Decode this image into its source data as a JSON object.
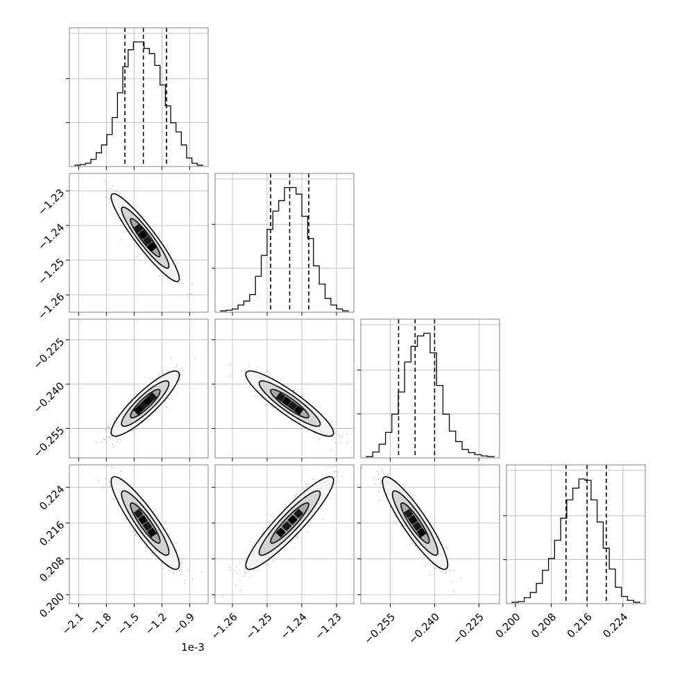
{
  "chart_data": {
    "type": "corner",
    "parameters": 4,
    "axis_x_offset_text": "1e-3",
    "grid": true,
    "colors": {
      "ink": "#000000",
      "grid": "#b0b0b0",
      "frame": "#808080"
    },
    "quantile_lines": "dashed",
    "params": [
      {
        "range": [
          -2.2,
          -0.7
        ],
        "ticks": [
          -2.1,
          -1.8,
          -1.5,
          -1.2,
          -0.9
        ],
        "tick_labels": [
          "−2.1",
          "−1.8",
          "−1.5",
          "−1.2",
          "−0.9"
        ],
        "quantiles": [
          -1.6,
          -1.4,
          -1.15
        ],
        "histogram": [
          0.005,
          0.01,
          0.02,
          0.05,
          0.1,
          0.16,
          0.24,
          0.37,
          0.56,
          0.76,
          0.89,
          0.95,
          0.95,
          0.9,
          0.86,
          0.77,
          0.62,
          0.46,
          0.33,
          0.26,
          0.16,
          0.06,
          0.02,
          0.005
        ]
      },
      {
        "range": [
          -1.265,
          -1.225
        ],
        "ticks": [
          -1.26,
          -1.25,
          -1.24,
          -1.23
        ],
        "tick_labels": [
          "−1.26",
          "−1.25",
          "−1.24",
          "−1.23"
        ],
        "quantiles": [
          -1.249,
          -1.2435,
          -1.238
        ],
        "histogram": [
          0.005,
          0.01,
          0.02,
          0.05,
          0.08,
          0.13,
          0.27,
          0.43,
          0.63,
          0.77,
          0.85,
          0.95,
          0.95,
          0.9,
          0.73,
          0.56,
          0.35,
          0.21,
          0.1,
          0.05,
          0.02,
          0.005
        ]
      },
      {
        "range": [
          -0.265,
          -0.218
        ],
        "ticks": [
          -0.255,
          -0.24,
          -0.225
        ],
        "tick_labels": [
          "−0.255",
          "−0.240",
          "−0.225"
        ],
        "quantiles": [
          -0.2522,
          -0.2466,
          -0.24
        ],
        "histogram": [
          0.005,
          0.04,
          0.1,
          0.19,
          0.33,
          0.5,
          0.73,
          0.85,
          0.93,
          0.95,
          0.8,
          0.55,
          0.33,
          0.2,
          0.12,
          0.06,
          0.035,
          0.02,
          0.01,
          0.005
        ]
      },
      {
        "range": [
          0.198,
          0.229
        ],
        "ticks": [
          0.2,
          0.208,
          0.216,
          0.224
        ],
        "tick_labels": [
          "0.200",
          "0.208",
          "0.216",
          "0.224"
        ],
        "quantiles": [
          0.2113,
          0.216,
          0.2203
        ],
        "histogram": [
          0.005,
          0.01,
          0.04,
          0.08,
          0.15,
          0.25,
          0.34,
          0.48,
          0.65,
          0.79,
          0.88,
          0.95,
          0.94,
          0.79,
          0.62,
          0.42,
          0.26,
          0.12,
          0.05,
          0.02,
          0.005
        ]
      }
    ],
    "pairs": [
      {
        "row": 1,
        "col": 0,
        "mean": [
          -1.38,
          -1.2435
        ],
        "sd": [
          0.16,
          0.0055
        ],
        "corr": -0.93
      },
      {
        "row": 2,
        "col": 0,
        "mean": [
          -1.38,
          -0.2466
        ],
        "sd": [
          0.16,
          0.0048
        ],
        "corr": 0.88
      },
      {
        "row": 2,
        "col": 1,
        "mean": [
          -1.2435,
          -0.2466
        ],
        "sd": [
          0.0055,
          0.0048
        ],
        "corr": -0.9
      },
      {
        "row": 3,
        "col": 0,
        "mean": [
          -1.38,
          0.216
        ],
        "sd": [
          0.16,
          0.0045
        ],
        "corr": -0.9
      },
      {
        "row": 3,
        "col": 1,
        "mean": [
          -1.2435,
          0.216
        ],
        "sd": [
          0.0055,
          0.0045
        ],
        "corr": 0.92
      },
      {
        "row": 3,
        "col": 2,
        "mean": [
          -0.2466,
          0.216
        ],
        "sd": [
          0.0048,
          0.0045
        ],
        "corr": -0.9
      }
    ]
  }
}
